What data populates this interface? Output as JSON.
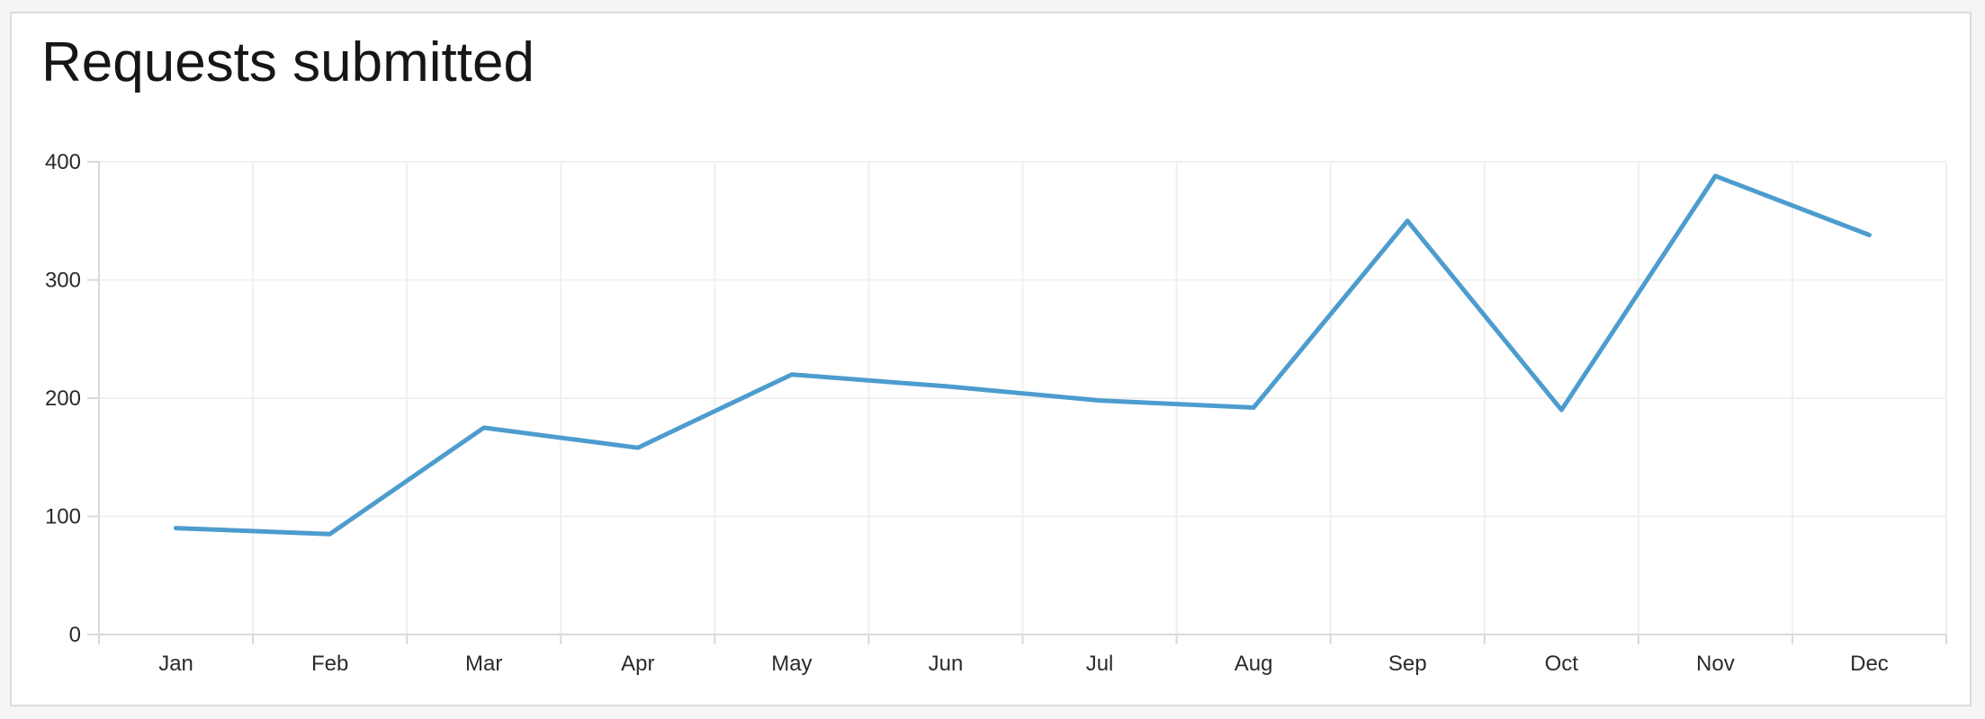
{
  "page": {
    "background_color": "#f5f5f5",
    "card_background_color": "#ffffff",
    "card_border_color": "#dcdcdc"
  },
  "chart": {
    "title": "Requests submitted",
    "title_color": "#161616",
    "line_color": "#4D9CCE",
    "grid_color": "#f0f0f0",
    "axis_color": "#d9d9d9",
    "label_color": "#2b2b2b"
  },
  "chart_data": {
    "type": "line",
    "title": "Requests submitted",
    "categories": [
      "Jan",
      "Feb",
      "Mar",
      "Apr",
      "May",
      "Jun",
      "Jul",
      "Aug",
      "Sep",
      "Oct",
      "Nov",
      "Dec"
    ],
    "values": [
      90,
      85,
      175,
      158,
      220,
      210,
      198,
      192,
      350,
      190,
      388,
      338
    ],
    "xlabel": "",
    "ylabel": "",
    "ylim": [
      0,
      400
    ],
    "yticks": [
      0,
      100,
      200,
      300,
      400
    ],
    "grid": true,
    "legend": false
  }
}
